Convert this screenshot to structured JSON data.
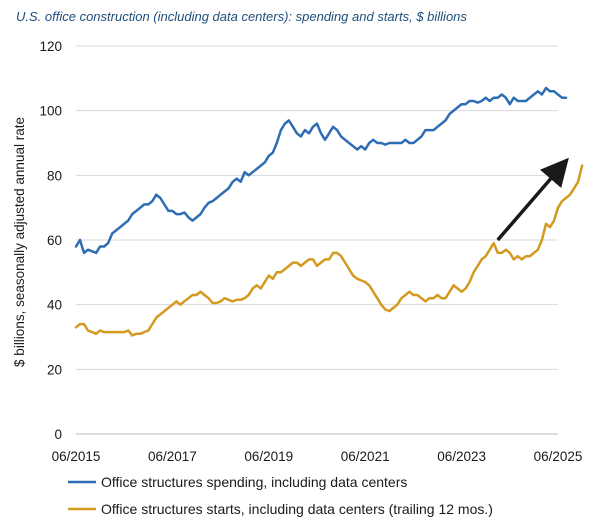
{
  "chart_data": {
    "type": "line",
    "title": "U.S. office construction (including data centers): spending and starts, $ billions",
    "xlabel": "",
    "ylabel": "$ billions, seasonally adjusted annual rate",
    "x_ticks": [
      "06/2015",
      "06/2017",
      "06/2019",
      "06/2021",
      "06/2023",
      "06/2025"
    ],
    "y_ticks": [
      0,
      20,
      40,
      60,
      80,
      100,
      120
    ],
    "ylim": [
      0,
      120
    ],
    "xlim": [
      "2015-06",
      "2025-08"
    ],
    "grid": "horizontal",
    "legend_placement": "bottom",
    "series": [
      {
        "name": "Office structures spending, including data centers",
        "color": "#2e6db4",
        "points": [
          [
            "2015-06",
            58
          ],
          [
            "2015-07",
            60
          ],
          [
            "2015-08",
            56
          ],
          [
            "2015-09",
            57
          ],
          [
            "2015-10",
            56.5
          ],
          [
            "2015-11",
            56
          ],
          [
            "2015-12",
            58
          ],
          [
            "2016-01",
            58
          ],
          [
            "2016-02",
            59
          ],
          [
            "2016-03",
            62
          ],
          [
            "2016-04",
            63
          ],
          [
            "2016-05",
            64
          ],
          [
            "2016-06",
            65
          ],
          [
            "2016-07",
            66
          ],
          [
            "2016-08",
            68
          ],
          [
            "2016-09",
            69
          ],
          [
            "2016-10",
            70
          ],
          [
            "2016-11",
            71
          ],
          [
            "2016-12",
            71
          ],
          [
            "2017-01",
            72
          ],
          [
            "2017-02",
            74
          ],
          [
            "2017-03",
            73
          ],
          [
            "2017-04",
            71
          ],
          [
            "2017-05",
            69
          ],
          [
            "2017-06",
            69
          ],
          [
            "2017-07",
            68
          ],
          [
            "2017-08",
            68
          ],
          [
            "2017-09",
            68.5
          ],
          [
            "2017-10",
            67
          ],
          [
            "2017-11",
            66
          ],
          [
            "2017-12",
            67
          ],
          [
            "2018-01",
            68
          ],
          [
            "2018-02",
            70
          ],
          [
            "2018-03",
            71.5
          ],
          [
            "2018-04",
            72
          ],
          [
            "2018-05",
            73
          ],
          [
            "2018-06",
            74
          ],
          [
            "2018-07",
            75
          ],
          [
            "2018-08",
            76
          ],
          [
            "2018-09",
            78
          ],
          [
            "2018-10",
            79
          ],
          [
            "2018-11",
            78
          ],
          [
            "2018-12",
            81
          ],
          [
            "2019-01",
            80
          ],
          [
            "2019-02",
            81
          ],
          [
            "2019-03",
            82
          ],
          [
            "2019-04",
            83
          ],
          [
            "2019-05",
            84
          ],
          [
            "2019-06",
            86
          ],
          [
            "2019-07",
            87
          ],
          [
            "2019-08",
            90
          ],
          [
            "2019-09",
            94
          ],
          [
            "2019-10",
            96
          ],
          [
            "2019-11",
            97
          ],
          [
            "2019-12",
            95
          ],
          [
            "2020-01",
            93
          ],
          [
            "2020-02",
            92
          ],
          [
            "2020-03",
            94
          ],
          [
            "2020-04",
            93
          ],
          [
            "2020-05",
            95
          ],
          [
            "2020-06",
            96
          ],
          [
            "2020-07",
            93
          ],
          [
            "2020-08",
            91
          ],
          [
            "2020-09",
            93
          ],
          [
            "2020-10",
            95
          ],
          [
            "2020-11",
            94
          ],
          [
            "2020-12",
            92
          ],
          [
            "2021-01",
            91
          ],
          [
            "2021-02",
            90
          ],
          [
            "2021-03",
            89
          ],
          [
            "2021-04",
            88
          ],
          [
            "2021-05",
            89
          ],
          [
            "2021-06",
            88
          ],
          [
            "2021-07",
            90
          ],
          [
            "2021-08",
            91
          ],
          [
            "2021-09",
            90
          ],
          [
            "2021-10",
            90
          ],
          [
            "2021-11",
            89.5
          ],
          [
            "2021-12",
            90
          ],
          [
            "2022-01",
            90
          ],
          [
            "2022-02",
            90
          ],
          [
            "2022-03",
            90
          ],
          [
            "2022-04",
            91
          ],
          [
            "2022-05",
            90
          ],
          [
            "2022-06",
            90
          ],
          [
            "2022-07",
            91
          ],
          [
            "2022-08",
            92
          ],
          [
            "2022-09",
            94
          ],
          [
            "2022-10",
            94
          ],
          [
            "2022-11",
            94
          ],
          [
            "2022-12",
            95
          ],
          [
            "2023-01",
            96
          ],
          [
            "2023-02",
            97
          ],
          [
            "2023-03",
            99
          ],
          [
            "2023-04",
            100
          ],
          [
            "2023-05",
            101
          ],
          [
            "2023-06",
            102
          ],
          [
            "2023-07",
            102
          ],
          [
            "2023-08",
            103
          ],
          [
            "2023-09",
            103
          ],
          [
            "2023-10",
            102.5
          ],
          [
            "2023-11",
            103
          ],
          [
            "2023-12",
            104
          ],
          [
            "2024-01",
            103
          ],
          [
            "2024-02",
            104
          ],
          [
            "2024-03",
            104
          ],
          [
            "2024-04",
            105
          ],
          [
            "2024-05",
            104
          ],
          [
            "2024-06",
            102
          ],
          [
            "2024-07",
            104
          ],
          [
            "2024-08",
            103
          ],
          [
            "2024-09",
            103
          ],
          [
            "2024-10",
            103
          ],
          [
            "2024-11",
            104
          ],
          [
            "2024-12",
            105
          ],
          [
            "2025-01",
            106
          ],
          [
            "2025-02",
            105
          ],
          [
            "2025-03",
            107
          ],
          [
            "2025-04",
            106
          ],
          [
            "2025-05",
            106
          ],
          [
            "2025-06",
            105
          ],
          [
            "2025-07",
            104
          ],
          [
            "2025-08",
            104
          ]
        ]
      },
      {
        "name": "Office structures starts, including data centers (trailing 12 mos.)",
        "color": "#d49a1e",
        "points": [
          [
            "2015-06",
            33
          ],
          [
            "2015-07",
            34
          ],
          [
            "2015-08",
            34
          ],
          [
            "2015-09",
            32
          ],
          [
            "2015-10",
            31.5
          ],
          [
            "2015-11",
            31
          ],
          [
            "2015-12",
            32
          ],
          [
            "2016-01",
            31.5
          ],
          [
            "2016-02",
            31.5
          ],
          [
            "2016-03",
            31.5
          ],
          [
            "2016-04",
            31.5
          ],
          [
            "2016-05",
            31.5
          ],
          [
            "2016-06",
            31.5
          ],
          [
            "2016-07",
            32
          ],
          [
            "2016-08",
            30.5
          ],
          [
            "2016-09",
            31
          ],
          [
            "2016-10",
            31
          ],
          [
            "2016-11",
            31.5
          ],
          [
            "2016-12",
            32
          ],
          [
            "2017-01",
            34
          ],
          [
            "2017-02",
            36
          ],
          [
            "2017-03",
            37
          ],
          [
            "2017-04",
            38
          ],
          [
            "2017-05",
            39
          ],
          [
            "2017-06",
            40
          ],
          [
            "2017-07",
            41
          ],
          [
            "2017-08",
            40
          ],
          [
            "2017-09",
            41
          ],
          [
            "2017-10",
            42
          ],
          [
            "2017-11",
            43
          ],
          [
            "2017-12",
            43
          ],
          [
            "2018-01",
            44
          ],
          [
            "2018-02",
            43
          ],
          [
            "2018-03",
            42
          ],
          [
            "2018-04",
            40.5
          ],
          [
            "2018-05",
            40.5
          ],
          [
            "2018-06",
            41
          ],
          [
            "2018-07",
            42
          ],
          [
            "2018-08",
            41.5
          ],
          [
            "2018-09",
            41
          ],
          [
            "2018-10",
            41.5
          ],
          [
            "2018-11",
            41.5
          ],
          [
            "2018-12",
            42
          ],
          [
            "2019-01",
            43
          ],
          [
            "2019-02",
            45
          ],
          [
            "2019-03",
            46
          ],
          [
            "2019-04",
            45
          ],
          [
            "2019-05",
            47
          ],
          [
            "2019-06",
            49
          ],
          [
            "2019-07",
            48
          ],
          [
            "2019-08",
            50
          ],
          [
            "2019-09",
            50
          ],
          [
            "2019-10",
            51
          ],
          [
            "2019-11",
            52
          ],
          [
            "2019-12",
            53
          ],
          [
            "2020-01",
            53
          ],
          [
            "2020-02",
            52
          ],
          [
            "2020-03",
            53
          ],
          [
            "2020-04",
            54
          ],
          [
            "2020-05",
            54
          ],
          [
            "2020-06",
            52
          ],
          [
            "2020-07",
            53
          ],
          [
            "2020-08",
            54
          ],
          [
            "2020-09",
            54
          ],
          [
            "2020-10",
            56
          ],
          [
            "2020-11",
            56
          ],
          [
            "2020-12",
            55
          ],
          [
            "2021-01",
            53
          ],
          [
            "2021-02",
            51
          ],
          [
            "2021-03",
            49
          ],
          [
            "2021-04",
            48
          ],
          [
            "2021-05",
            47.5
          ],
          [
            "2021-06",
            47
          ],
          [
            "2021-07",
            46
          ],
          [
            "2021-08",
            44
          ],
          [
            "2021-09",
            42
          ],
          [
            "2021-10",
            40
          ],
          [
            "2021-11",
            38.5
          ],
          [
            "2021-12",
            38
          ],
          [
            "2022-01",
            39
          ],
          [
            "2022-02",
            40
          ],
          [
            "2022-03",
            42
          ],
          [
            "2022-04",
            43
          ],
          [
            "2022-05",
            44
          ],
          [
            "2022-06",
            43
          ],
          [
            "2022-07",
            43
          ],
          [
            "2022-08",
            42
          ],
          [
            "2022-09",
            41
          ],
          [
            "2022-10",
            42
          ],
          [
            "2022-11",
            42
          ],
          [
            "2022-12",
            43
          ],
          [
            "2023-01",
            42
          ],
          [
            "2023-02",
            42
          ],
          [
            "2023-03",
            44
          ],
          [
            "2023-04",
            46
          ],
          [
            "2023-05",
            45
          ],
          [
            "2023-06",
            44
          ],
          [
            "2023-07",
            45
          ],
          [
            "2023-08",
            47
          ],
          [
            "2023-09",
            50
          ],
          [
            "2023-10",
            52
          ],
          [
            "2023-11",
            54
          ],
          [
            "2023-12",
            55
          ],
          [
            "2024-01",
            57
          ],
          [
            "2024-02",
            59
          ],
          [
            "2024-03",
            56
          ],
          [
            "2024-04",
            56
          ],
          [
            "2024-05",
            57
          ],
          [
            "2024-06",
            56
          ],
          [
            "2024-07",
            54
          ],
          [
            "2024-08",
            55
          ],
          [
            "2024-09",
            54
          ],
          [
            "2024-10",
            55
          ],
          [
            "2024-11",
            55
          ],
          [
            "2024-12",
            56
          ],
          [
            "2025-01",
            57
          ],
          [
            "2025-02",
            60
          ],
          [
            "2025-03",
            65
          ],
          [
            "2025-04",
            64
          ],
          [
            "2025-05",
            66
          ],
          [
            "2025-06",
            70
          ],
          [
            "2025-07",
            72
          ],
          [
            "2025-08",
            73
          ],
          [
            "2025-09",
            74
          ],
          [
            "2025-10",
            76
          ],
          [
            "2025-11",
            78
          ],
          [
            "2025-12",
            83
          ]
        ]
      }
    ],
    "annotations": [
      {
        "type": "arrow",
        "from": [
          "2024-03",
          60
        ],
        "to": [
          "2025-07",
          83
        ],
        "color": "#1a1a1a"
      }
    ]
  }
}
